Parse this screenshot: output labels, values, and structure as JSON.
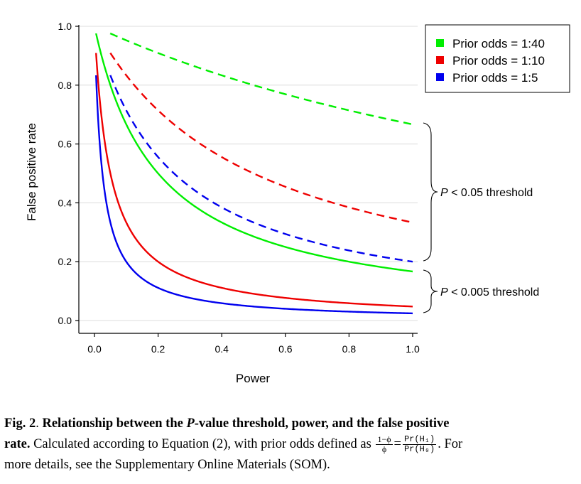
{
  "chart_data": {
    "type": "line",
    "xlabel": "Power",
    "ylabel": "False positive rate",
    "xlim": [
      0.0,
      1.0
    ],
    "ylim": [
      0.0,
      1.0
    ],
    "xticks": [
      "0.0",
      "0.2",
      "0.4",
      "0.6",
      "0.8",
      "1.0"
    ],
    "yticks": [
      "0.0",
      "0.2",
      "0.4",
      "0.6",
      "0.8",
      "1.0"
    ],
    "grid": "horizontal",
    "legend_position": "top-right",
    "legend": [
      {
        "label": "Prior odds = 1:40",
        "color": "#00ee00"
      },
      {
        "label": "Prior odds = 1:10",
        "color": "#ee0000"
      },
      {
        "label": "Prior odds = 1:5",
        "color": "#0000ee"
      }
    ],
    "series": [
      {
        "name": "Prior odds = 1:40",
        "group": "P < 0.05 threshold",
        "style": "dashed",
        "color": "#00ee00",
        "odds": 40,
        "alpha": 0.05,
        "x": [
          0.05,
          0.1,
          0.2,
          0.3,
          0.4,
          0.5,
          0.6,
          0.7,
          0.8,
          0.9,
          1.0
        ],
        "y": [
          0.976,
          0.952,
          0.909,
          0.87,
          0.833,
          0.8,
          0.769,
          0.741,
          0.714,
          0.69,
          0.667
        ]
      },
      {
        "name": "Prior odds = 1:10",
        "group": "P < 0.05 threshold",
        "style": "dashed",
        "color": "#ee0000",
        "odds": 10,
        "alpha": 0.05,
        "x": [
          0.05,
          0.1,
          0.2,
          0.3,
          0.4,
          0.5,
          0.6,
          0.7,
          0.8,
          0.9,
          1.0
        ],
        "y": [
          0.909,
          0.833,
          0.714,
          0.625,
          0.556,
          0.5,
          0.455,
          0.417,
          0.385,
          0.357,
          0.333
        ]
      },
      {
        "name": "Prior odds = 1:5",
        "group": "P < 0.05 threshold",
        "style": "dashed",
        "color": "#0000ee",
        "odds": 5,
        "alpha": 0.05,
        "x": [
          0.05,
          0.1,
          0.2,
          0.3,
          0.4,
          0.5,
          0.6,
          0.7,
          0.8,
          0.9,
          1.0
        ],
        "y": [
          0.833,
          0.714,
          0.556,
          0.455,
          0.385,
          0.333,
          0.294,
          0.263,
          0.238,
          0.217,
          0.2
        ]
      },
      {
        "name": "Prior odds = 1:40",
        "group": "P < 0.005 threshold",
        "style": "solid",
        "color": "#00ee00",
        "odds": 40,
        "alpha": 0.005,
        "x": [
          0.005,
          0.05,
          0.1,
          0.2,
          0.3,
          0.4,
          0.5,
          0.6,
          0.7,
          0.8,
          0.9,
          1.0
        ],
        "y": [
          0.976,
          0.8,
          0.667,
          0.5,
          0.4,
          0.333,
          0.286,
          0.25,
          0.222,
          0.2,
          0.182,
          0.167
        ]
      },
      {
        "name": "Prior odds = 1:10",
        "group": "P < 0.005 threshold",
        "style": "solid",
        "color": "#ee0000",
        "odds": 10,
        "alpha": 0.005,
        "x": [
          0.005,
          0.05,
          0.1,
          0.2,
          0.3,
          0.4,
          0.5,
          0.6,
          0.7,
          0.8,
          0.9,
          1.0
        ],
        "y": [
          0.909,
          0.5,
          0.333,
          0.2,
          0.143,
          0.111,
          0.091,
          0.077,
          0.067,
          0.059,
          0.053,
          0.048
        ]
      },
      {
        "name": "Prior odds = 1:5",
        "group": "P < 0.005 threshold",
        "style": "solid",
        "color": "#0000ee",
        "odds": 5,
        "alpha": 0.005,
        "x": [
          0.005,
          0.05,
          0.1,
          0.2,
          0.3,
          0.4,
          0.5,
          0.6,
          0.7,
          0.8,
          0.9,
          1.0
        ],
        "y": [
          0.833,
          0.333,
          0.2,
          0.111,
          0.077,
          0.059,
          0.048,
          0.04,
          0.035,
          0.03,
          0.027,
          0.024
        ]
      }
    ],
    "annotations": [
      {
        "text_italic": "P",
        "text": " < 0.05 threshold",
        "y_range": [
          0.2,
          0.667
        ]
      },
      {
        "text_italic": "P",
        "text": " < 0.005 threshold",
        "y_range": [
          0.024,
          0.167
        ]
      }
    ]
  },
  "caption": {
    "figure_label": "Fig. 2",
    "title_before_italic": "Relationship between the ",
    "title_italic": "P",
    "title_after_italic": "-value threshold, power, and the false positive",
    "title_line2": "rate.",
    "body_part1": " Calculated according to Equation (2), with prior odds defined as ",
    "frac1_num": "1−ϕ",
    "frac1_den": "ϕ",
    "frac2_num": "Pr(H₁)",
    "frac2_den": "Pr(H₀)",
    "body_part2": ". For",
    "line3": "more details, see the Supplementary Online Materials (SOM)."
  }
}
